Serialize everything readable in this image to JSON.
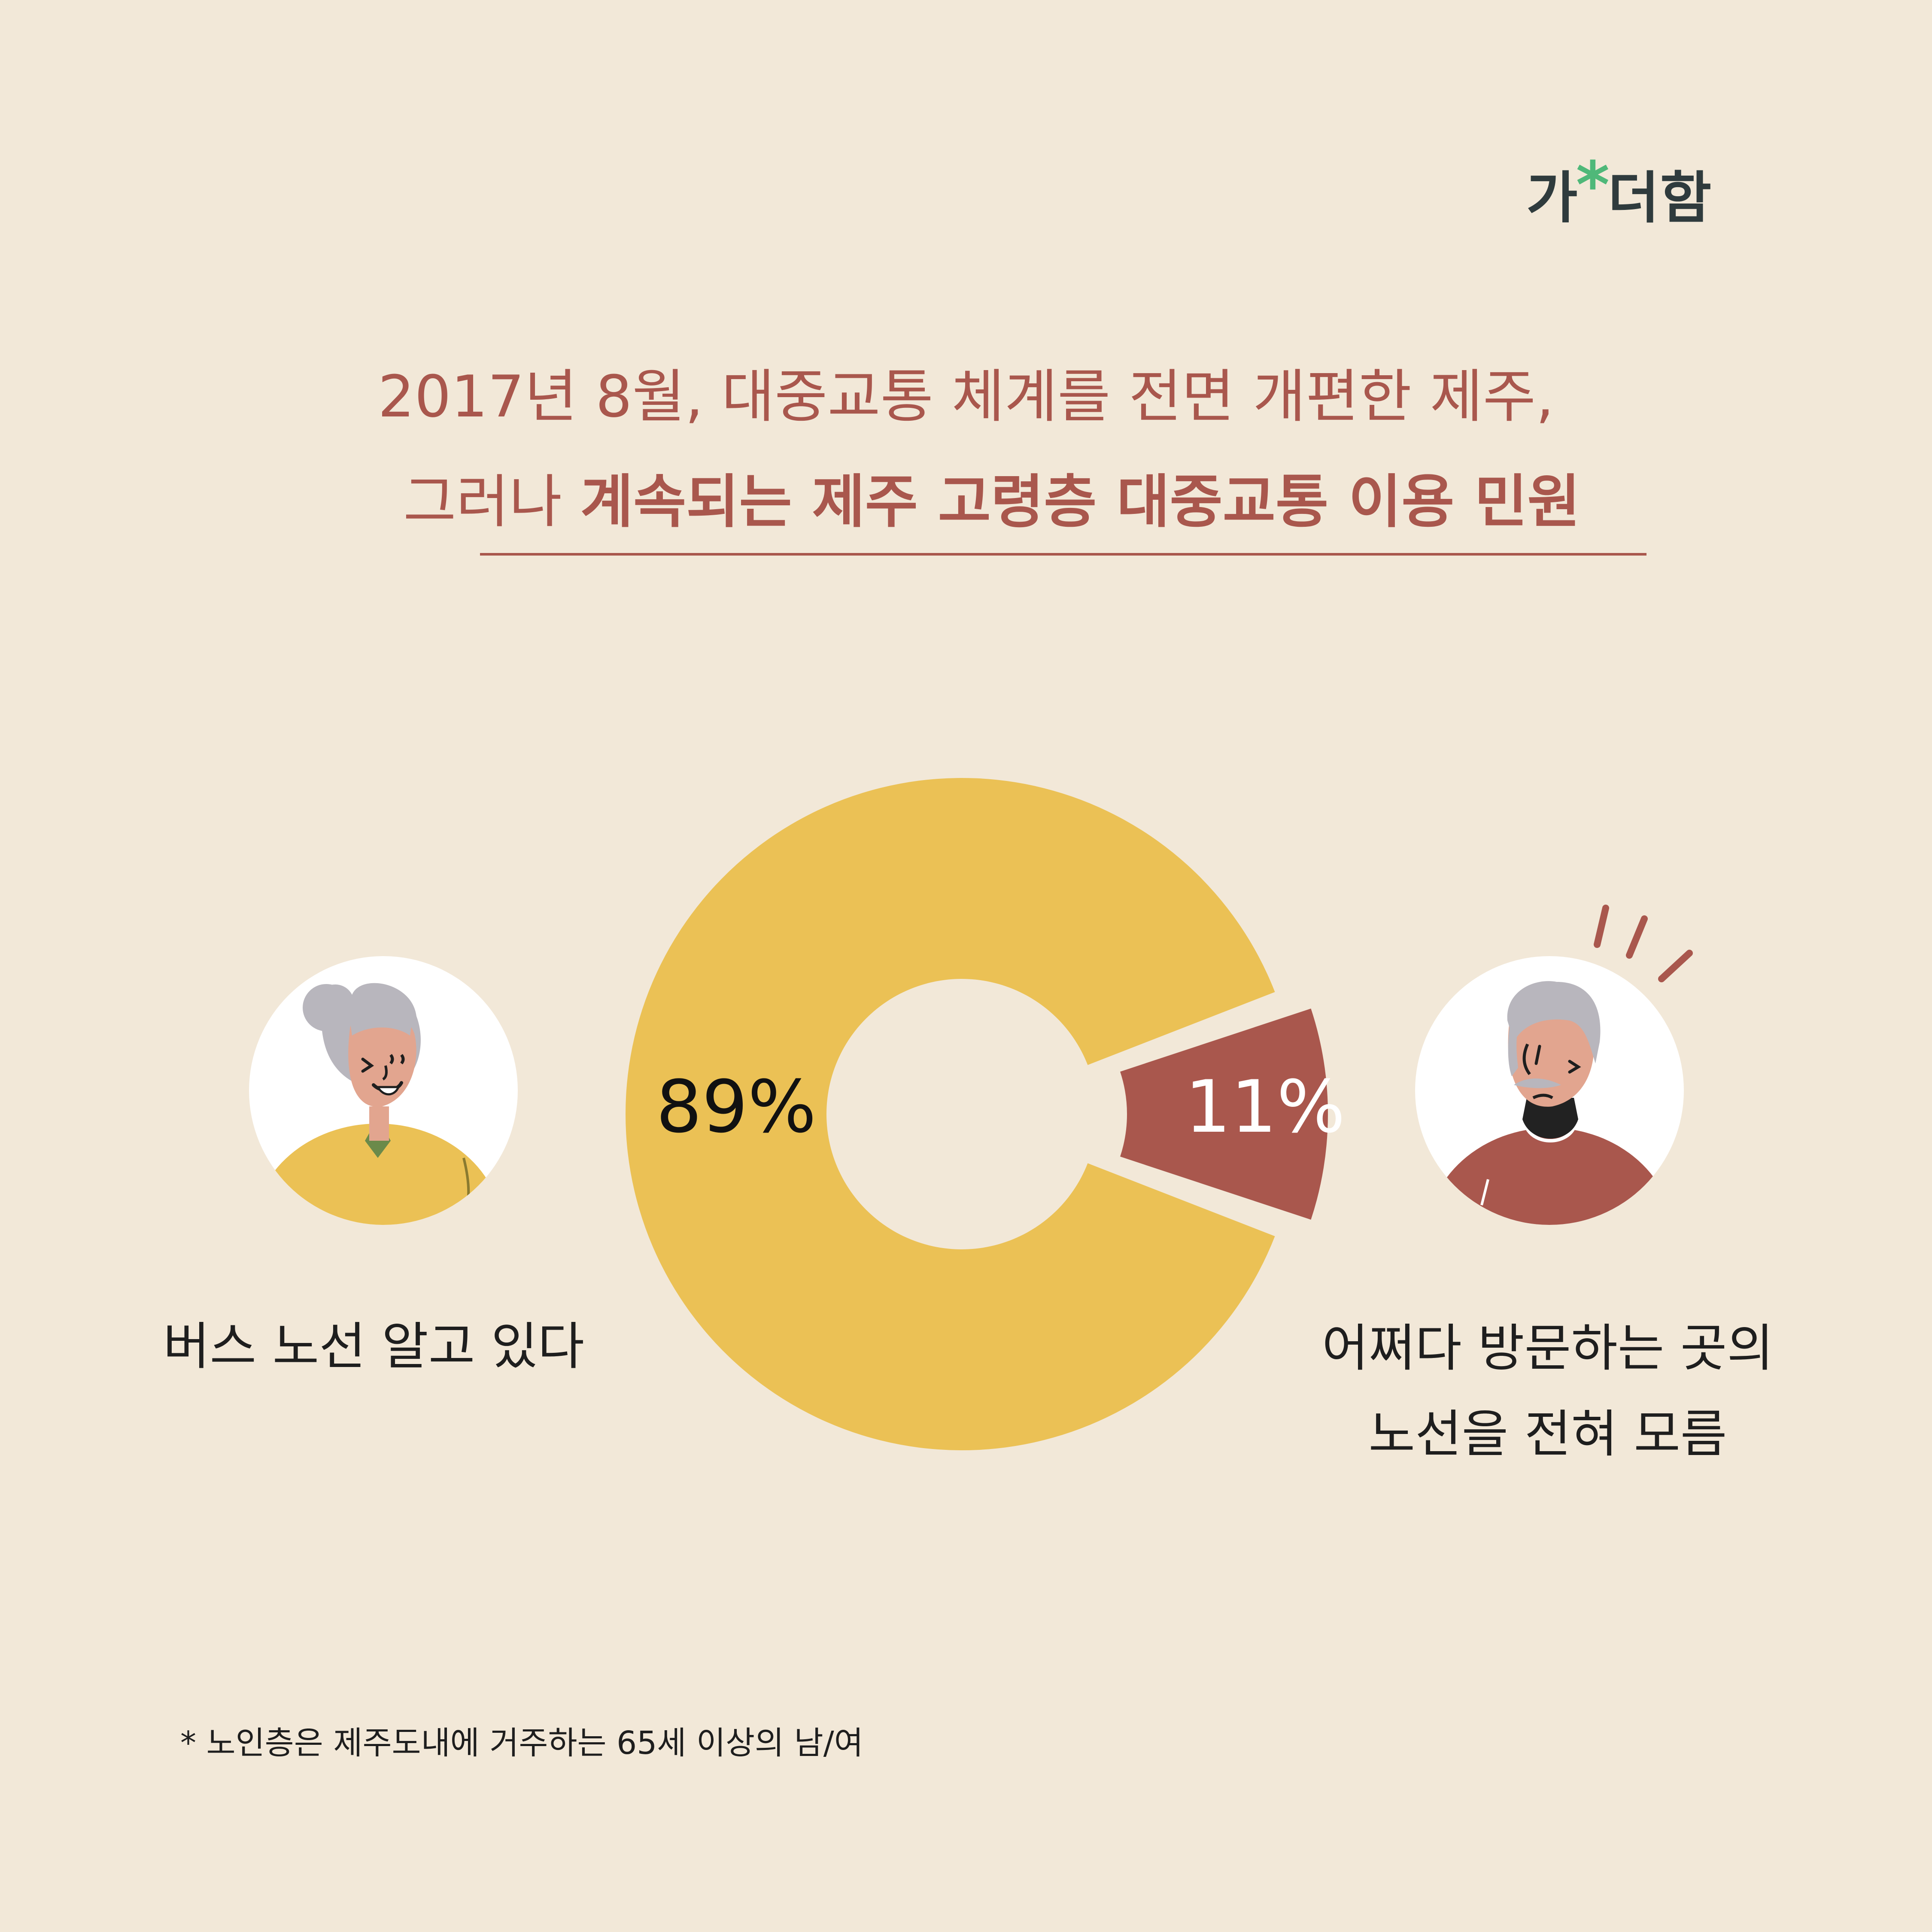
{
  "brand": {
    "logo_text_before": "가",
    "logo_text_after": "더함",
    "logo_mark": "*",
    "accent_color": "#4fb879"
  },
  "title": {
    "line1": "2017년 8월, 대중교통 체계를 전면 개편한 제주,",
    "line2_prefix": "그러나 ",
    "line2_highlight": "계속되는 제주 고령층 대중교통 이용 민원"
  },
  "chart_data": {
    "type": "pie",
    "donut": true,
    "title": "",
    "categories": [
      "버스 노선 알고 있다",
      "어쩌다 방문하는 곳의 노선을 전혀 모름"
    ],
    "values": [
      89,
      11
    ],
    "value_labels": [
      "89%",
      "11%"
    ],
    "colors": [
      "#ebc155",
      "#a9574d"
    ],
    "exploded": [
      false,
      true
    ]
  },
  "captions": {
    "left": "버스 노선 알고 있다",
    "right_line1": "어쩌다 방문하는 곳의",
    "right_line2": "노선을 전혀 모름"
  },
  "footnote": "* 노인층은 제주도내에 거주하는 65세 이상의 남/여",
  "icons": {
    "left_avatar": "smiling-elderly-woman-icon",
    "right_avatar": "confused-elderly-man-icon"
  },
  "colors": {
    "background": "#f2e8d8",
    "title": "#a9574d",
    "major_slice": "#ebc155",
    "minor_slice": "#a9574d"
  }
}
